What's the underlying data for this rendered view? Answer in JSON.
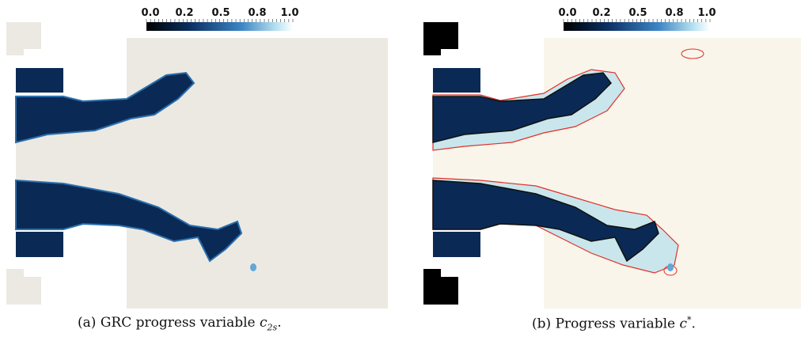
{
  "panels": [
    {
      "colorbar": {
        "ticks": [
          "0.0",
          "0.2",
          "0.5",
          "0.8",
          "1.0"
        ]
      },
      "caption": {
        "label": "(a)",
        "text": "GRC progress variable",
        "symbol": "c",
        "subscript": "2s",
        "end": "."
      }
    },
    {
      "colorbar": {
        "ticks": [
          "0.0",
          "0.2",
          "0.5",
          "0.8",
          "1.0"
        ]
      },
      "caption": {
        "label": "(b)",
        "text": "Progress variable",
        "symbol": "c",
        "superscript": "*",
        "end": "."
      }
    }
  ]
}
